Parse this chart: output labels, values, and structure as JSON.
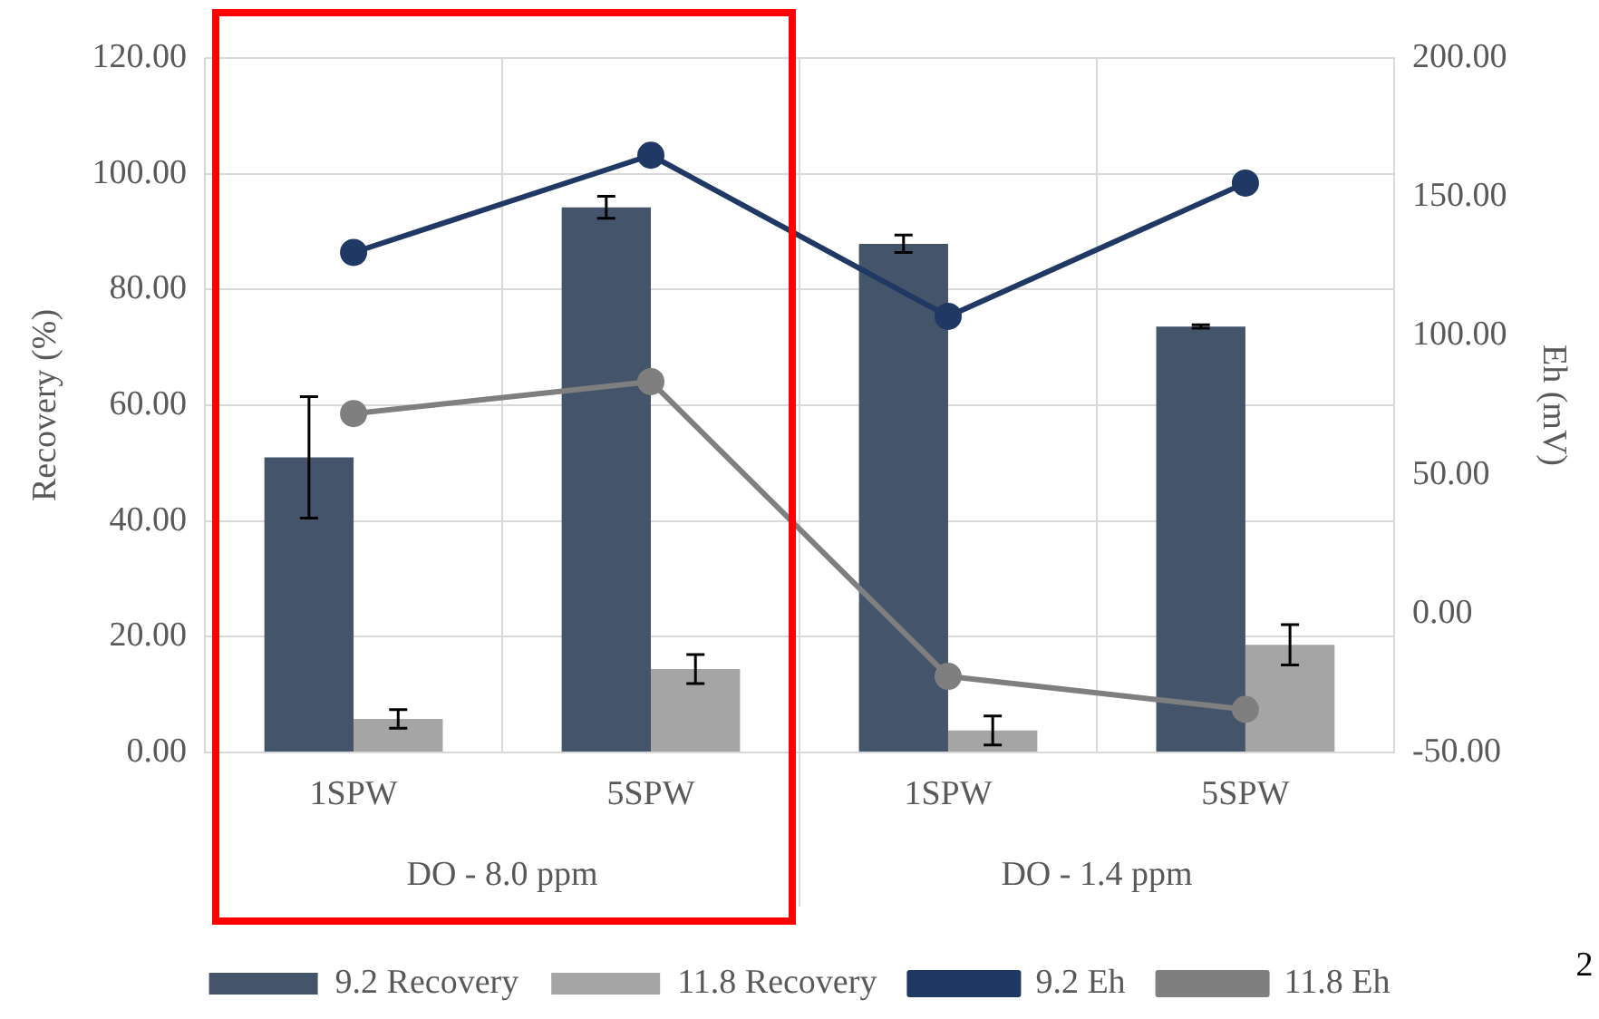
{
  "chart_data": {
    "type": "bar",
    "ylabel": "Recovery (%)",
    "y2label": "Eh (mV)",
    "categories": [
      "1SPW",
      "5SPW",
      "1SPW",
      "5SPW"
    ],
    "series": [
      {
        "name": "9.2 Recovery",
        "color": "#44546a",
        "values": [
          51,
          94.2,
          87.9,
          73.6
        ],
        "errors": [
          10.5,
          1.9,
          1.5,
          0.3
        ]
      },
      {
        "name": "11.8 Recovery",
        "color": "#a5a5a5",
        "values": [
          5.8,
          14.4,
          3.8,
          18.6
        ],
        "errors": [
          1.6,
          2.5,
          2.5,
          3.5
        ]
      },
      {
        "name": "9.2 Eh",
        "type": "line",
        "axis": "y2",
        "color": "#1f3864",
        "values": [
          130,
          165,
          107,
          155
        ]
      },
      {
        "name": "11.8 Eh",
        "type": "line",
        "axis": "y2",
        "color": "#7f7f7f",
        "values": [
          72,
          83.5,
          -22.6,
          -34.5
        ]
      }
    ],
    "ylim": [
      0,
      120
    ],
    "yticks": [
      {
        "value": 0,
        "label": "0.00"
      },
      {
        "value": 20,
        "label": "20.00"
      },
      {
        "value": 40,
        "label": "40.00"
      },
      {
        "value": 60,
        "label": "60.00"
      },
      {
        "value": 80,
        "label": "80.00"
      },
      {
        "value": 100,
        "label": "100.00"
      },
      {
        "value": 120,
        "label": "120.00"
      }
    ],
    "y2lim": [
      -50,
      200
    ],
    "y2ticks": [
      {
        "value": -50,
        "label": "-50.00"
      },
      {
        "value": 0,
        "label": "0.00"
      },
      {
        "value": 50,
        "label": "50.00"
      },
      {
        "value": 100,
        "label": "100.00"
      },
      {
        "value": 150,
        "label": "150.00"
      },
      {
        "value": 200,
        "label": "200.00"
      }
    ],
    "annotations": [
      "DO - 8.0 ppm",
      "DO - 1.4 ppm",
      "2"
    ],
    "grid": true,
    "legend": "bottom",
    "marker": "circle",
    "line_style": "solid"
  }
}
